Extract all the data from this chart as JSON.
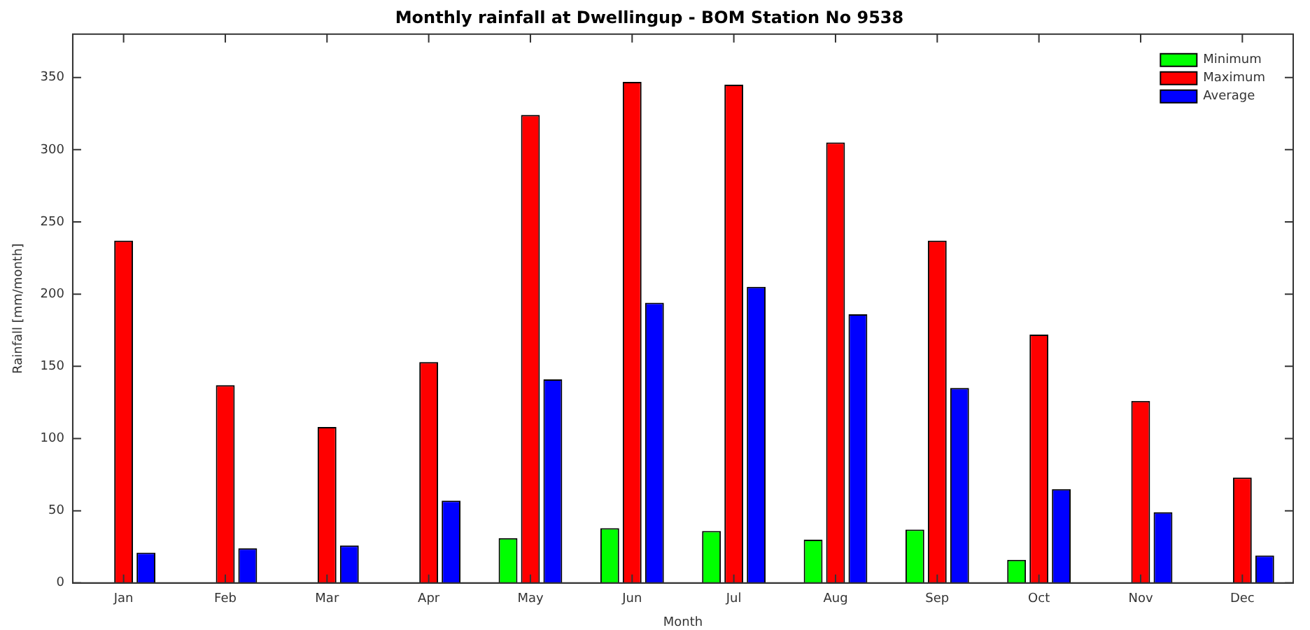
{
  "chart_data": {
    "type": "bar",
    "title": "Monthly rainfall at Dwellingup - BOM Station No 9538",
    "xlabel": "Month",
    "ylabel": "Rainfall [mm/month]",
    "categories": [
      "Jan",
      "Feb",
      "Mar",
      "Apr",
      "May",
      "Jun",
      "Jul",
      "Aug",
      "Sep",
      "Oct",
      "Nov",
      "Dec"
    ],
    "series": [
      {
        "name": "Minimum",
        "color": "#00ff00",
        "values": [
          0,
          0,
          0,
          0,
          31,
          38,
          36,
          30,
          37,
          16,
          0,
          0
        ]
      },
      {
        "name": "Maximum",
        "color": "#ff0000",
        "values": [
          237,
          137,
          108,
          153,
          324,
          347,
          345,
          305,
          237,
          172,
          126,
          73
        ]
      },
      {
        "name": "Average",
        "color": "#0000ff",
        "values": [
          21,
          24,
          26,
          57,
          141,
          194,
          205,
          186,
          135,
          65,
          49,
          19
        ]
      }
    ],
    "ylim": [
      0,
      380
    ],
    "yticks": [
      0,
      50,
      100,
      150,
      200,
      250,
      300,
      350
    ],
    "grid": false,
    "legend": "top right"
  }
}
